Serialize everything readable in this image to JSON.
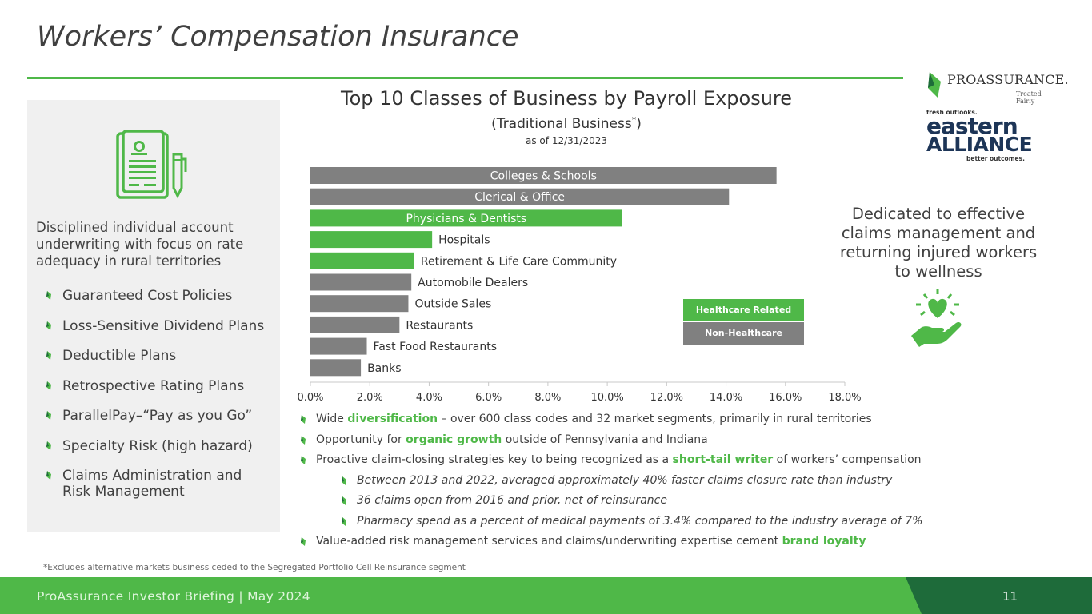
{
  "slide": {
    "title": "Workers’ Compensation Insurance",
    "footer_text": "ProAssurance Investor Briefing | May 2024",
    "page_number": "11",
    "footnote": "*Excludes alternative markets business ceded to the Segregated Portfolio Cell Reinsurance segment"
  },
  "left_panel": {
    "icon": "document-pen-icon",
    "intro": "Disciplined individual account underwriting with focus on rate adequacy in rural territories",
    "items": [
      "Guaranteed Cost Policies",
      "Loss-Sensitive Dividend Plans",
      "Deductible Plans",
      "Retrospective Rating Plans",
      "ParallelPay–“Pay as you Go”",
      "Specialty Risk (high hazard)",
      "Claims Administration and Risk Management"
    ]
  },
  "logos": {
    "proassurance_name": "PROASSURANCE.",
    "proassurance_tagline": "Treated Fairly",
    "eastern_top": "fresh outlooks.",
    "eastern_word1": "eastern",
    "eastern_word2": "ALLIANCE",
    "eastern_bottom": "better outcomes."
  },
  "right": {
    "text": "Dedicated to effective claims management and returning injured workers to wellness",
    "icon": "heart-hand-icon"
  },
  "legend": {
    "healthcare": "Healthcare Related",
    "non_healthcare": "Non-Healthcare"
  },
  "chart_data": {
    "type": "bar",
    "orientation": "horizontal",
    "title": "Top 10 Classes of Business by Payroll Exposure",
    "subtitle": "(Traditional Business*)",
    "date": "as of 12/31/2023",
    "categories": [
      "Colleges & Schools",
      "Clerical & Office",
      "Physicians & Dentists",
      "Hospitals",
      "Retirement & Life Care Community",
      "Automobile Dealers",
      "Outside Sales",
      "Restaurants",
      "Fast Food Restaurants",
      "Banks"
    ],
    "values": [
      15.7,
      14.1,
      10.5,
      4.1,
      3.5,
      3.4,
      3.3,
      3.0,
      1.9,
      1.7
    ],
    "healthcare_related": [
      false,
      false,
      true,
      true,
      true,
      false,
      false,
      false,
      false,
      false
    ],
    "xlim": [
      0,
      18
    ],
    "xticks": [
      "0.0%",
      "2.0%",
      "4.0%",
      "6.0%",
      "8.0%",
      "10.0%",
      "12.0%",
      "14.0%",
      "16.0%",
      "18.0%"
    ],
    "colors": {
      "healthcare": "#4fb848",
      "non_healthcare": "#808080"
    },
    "legend": "right"
  },
  "bullets": [
    {
      "parts": [
        {
          "t": "Wide "
        },
        {
          "t": "diversification",
          "hl": true
        },
        {
          "t": " – over 600 class codes and 32 market segments, primarily in rural territories"
        }
      ]
    },
    {
      "parts": [
        {
          "t": "Opportunity for "
        },
        {
          "t": "organic growth",
          "hl": true
        },
        {
          "t": " outside of Pennsylvania and Indiana"
        }
      ]
    },
    {
      "parts": [
        {
          "t": "Proactive claim-closing strategies key to being recognized as a "
        },
        {
          "t": "short-tail writer",
          "hl": true
        },
        {
          "t": " of workers’ compensation"
        }
      ]
    },
    {
      "sub": true,
      "parts": [
        {
          "t": "Between 2013 and 2022, averaged approximately 40% faster claims closure rate than industry"
        }
      ]
    },
    {
      "sub": true,
      "parts": [
        {
          "t": "36 claims open from 2016 and prior, net of reinsurance"
        }
      ]
    },
    {
      "sub": true,
      "parts": [
        {
          "t": "Pharmacy spend as a percent of medical payments of 3.4% compared to the industry average of 7%"
        }
      ]
    },
    {
      "parts": [
        {
          "t": "Value-added risk management services and claims/underwriting expertise cement "
        },
        {
          "t": "brand loyalty",
          "hl": true
        }
      ]
    }
  ]
}
